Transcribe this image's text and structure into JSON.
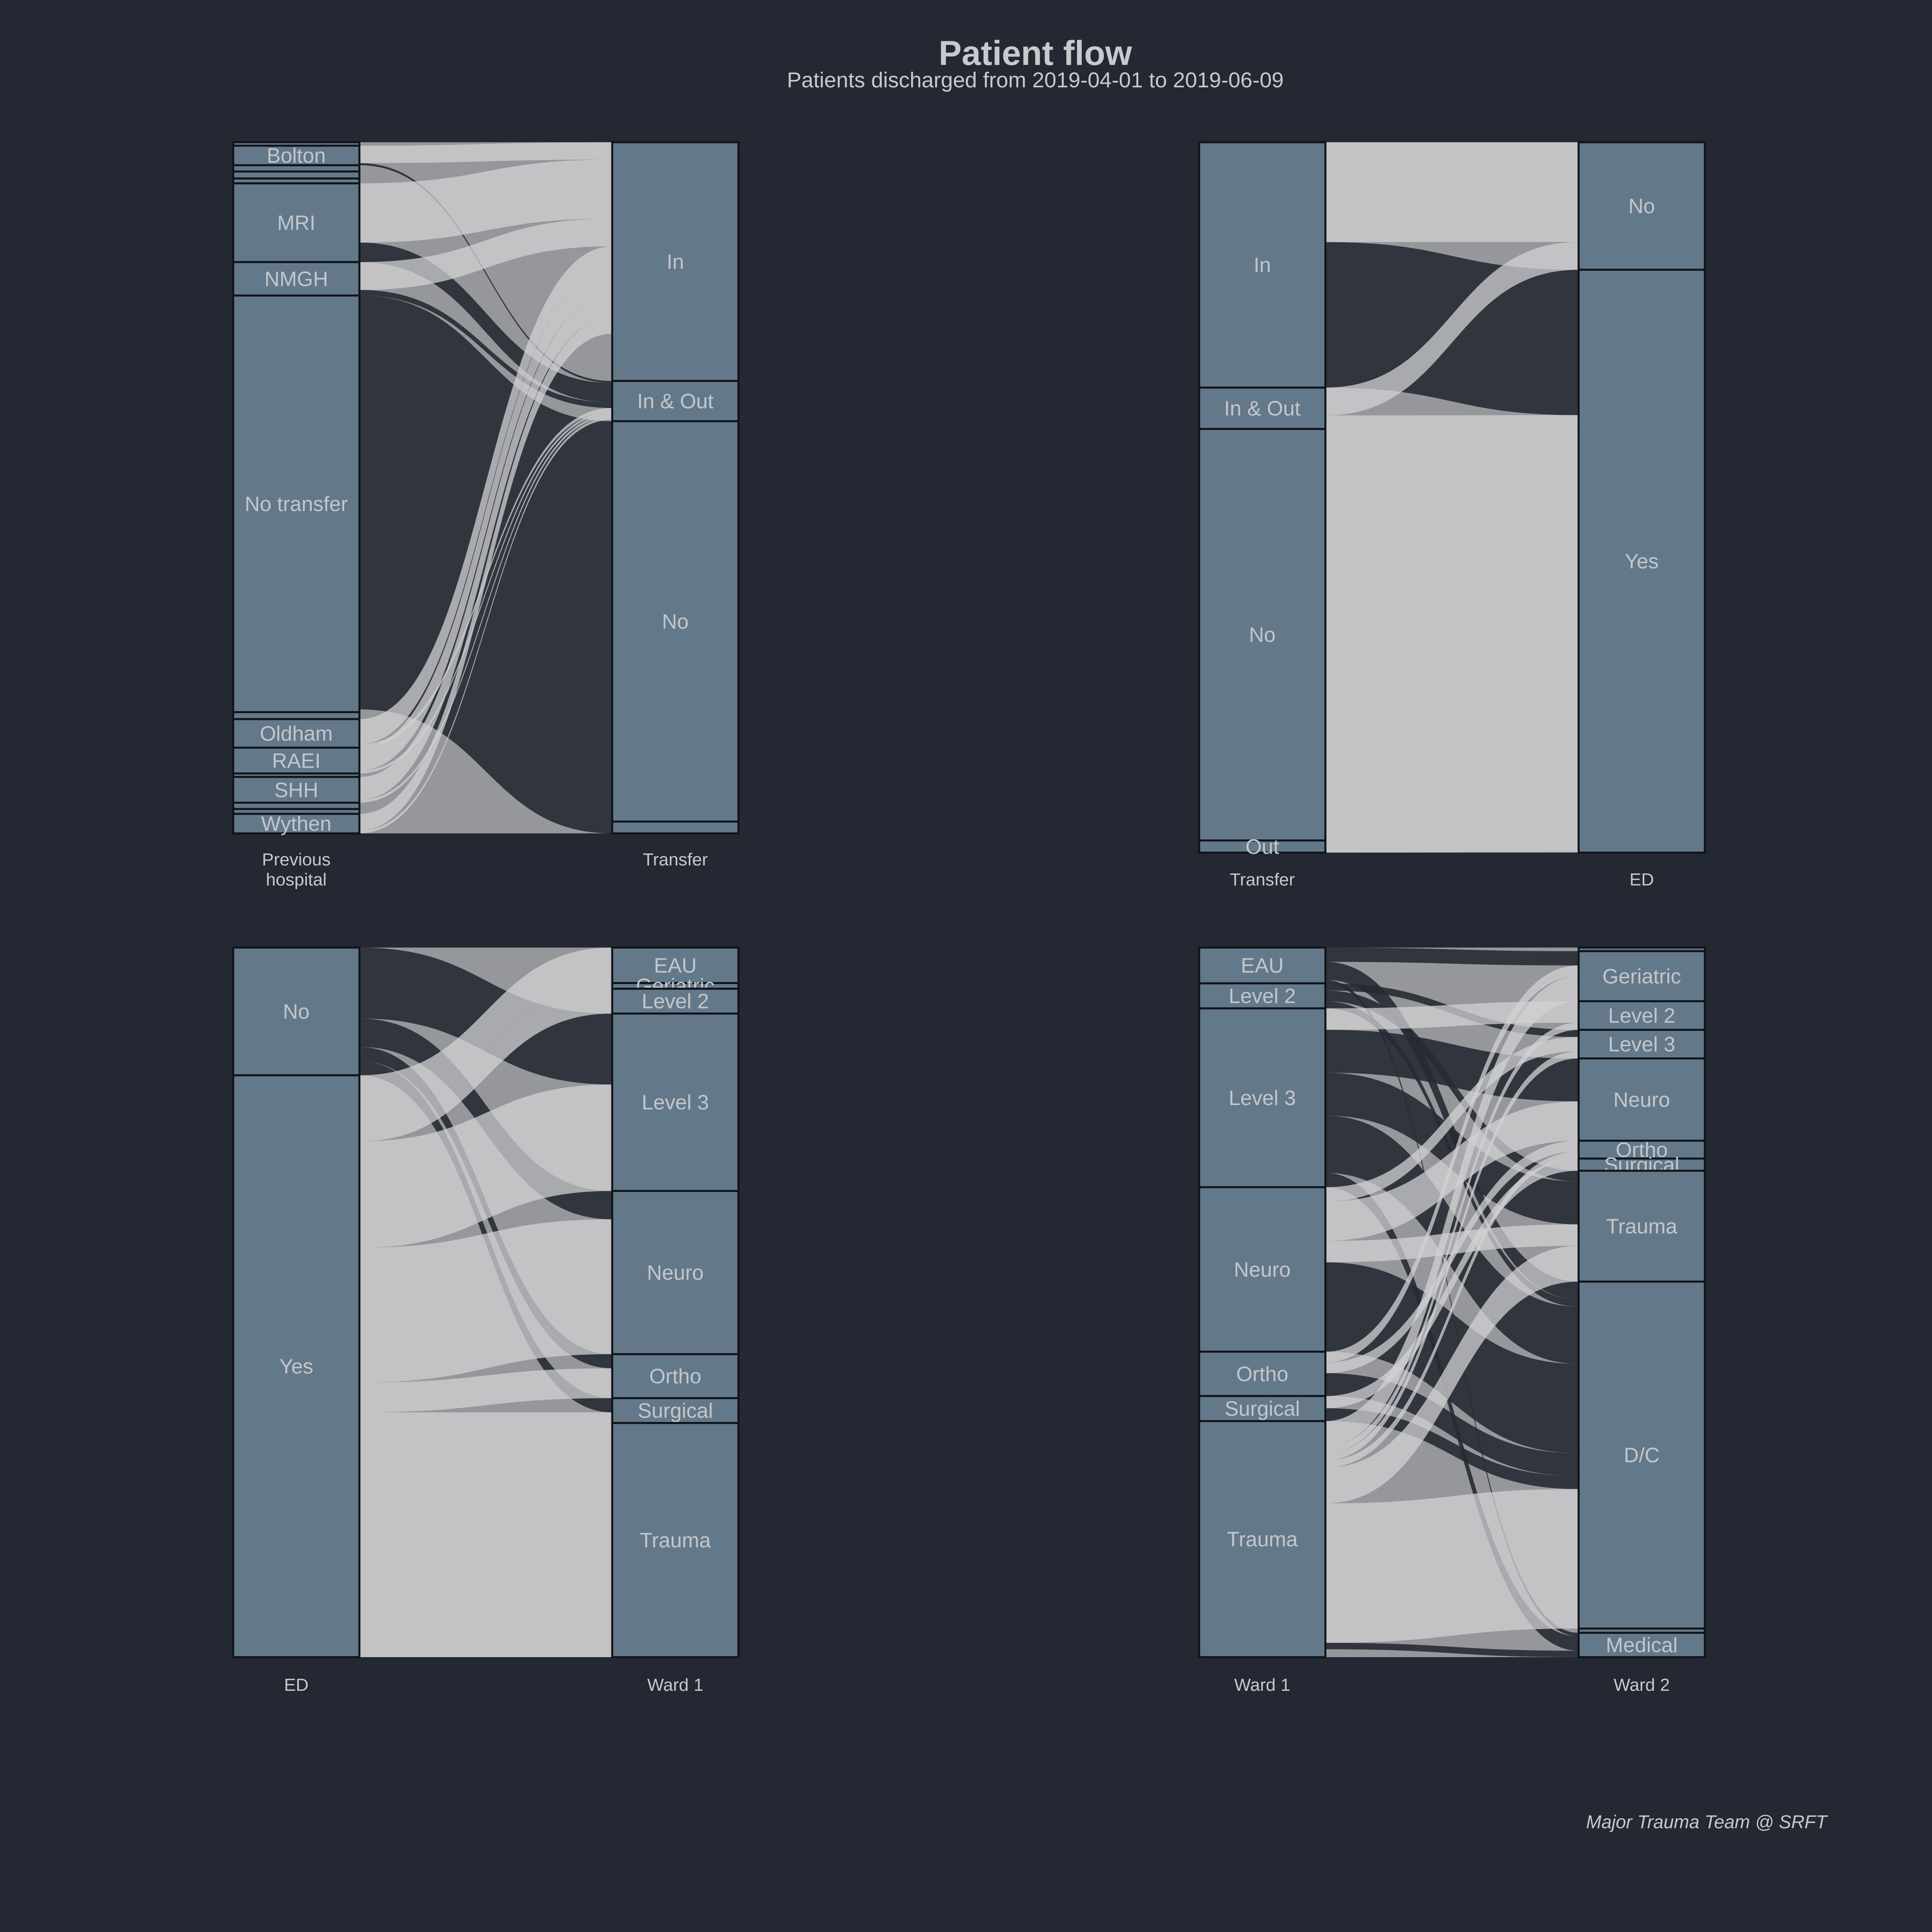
{
  "title": "Patient flow",
  "subtitle": "Patients discharged from 2019-04-01 to 2019-06-09",
  "caption": "Major Trauma Team @ SRFT",
  "colors": {
    "background": "#242833",
    "panel": "#96979b",
    "node": "#637989",
    "flow_light": "#d1d2d4",
    "flow_dark": "#262a33",
    "text": "#c8c9cc"
  },
  "chart_data": [
    {
      "type": "alluvial",
      "axes": [
        "Previous\nhospital",
        "Transfer"
      ],
      "axis_label_lines": [
        [
          "Previous",
          "hospital"
        ],
        [
          "Transfer"
        ]
      ],
      "left_nodes": [
        {
          "label": "",
          "value": 0.5
        },
        {
          "label": "Bolton",
          "value": 2.8
        },
        {
          "label": "",
          "value": 0.9
        },
        {
          "label": "",
          "value": 1.0
        },
        {
          "label": "",
          "value": 0.7
        },
        {
          "label": "MRI",
          "value": 11.3
        },
        {
          "label": "NMGH",
          "value": 4.8
        },
        {
          "label": "No transfer",
          "value": 59.8
        },
        {
          "label": "",
          "value": 1.0
        },
        {
          "label": "Oldham",
          "value": 4.1
        },
        {
          "label": "RAEI",
          "value": 3.7
        },
        {
          "label": "",
          "value": 0.5
        },
        {
          "label": "SHH",
          "value": 3.7
        },
        {
          "label": "",
          "value": 0.9
        },
        {
          "label": "",
          "value": 0.7
        },
        {
          "label": "Wythen",
          "value": 2.8
        }
      ],
      "right_nodes": [
        {
          "label": "In",
          "value": 34.4
        },
        {
          "label": "In & Out",
          "value": 5.8
        },
        {
          "label": "No",
          "value": 57.7
        },
        {
          "label": "",
          "value": 1.7
        }
      ],
      "flows": [
        {
          "from": "Bolton",
          "to": "In",
          "value": 2.5
        },
        {
          "from": "Bolton",
          "to": "In & Out",
          "value": 0.3
        },
        {
          "from": "MRI",
          "to": "In",
          "value": 8.5
        },
        {
          "from": "MRI",
          "to": "In & Out",
          "value": 2.8
        },
        {
          "from": "NMGH",
          "to": "In",
          "value": 4.0
        },
        {
          "from": "NMGH",
          "to": "In & Out",
          "value": 0.8
        },
        {
          "from": "No transfer",
          "to": "No",
          "value": 57.7
        },
        {
          "from": "No transfer",
          "to": "Out",
          "value": 1.7
        },
        {
          "from": "Oldham",
          "to": "In",
          "value": 3.6
        },
        {
          "from": "Oldham",
          "to": "In & Out",
          "value": 0.5
        },
        {
          "from": "RAEI",
          "to": "In",
          "value": 3.3
        },
        {
          "from": "RAEI",
          "to": "In & Out",
          "value": 0.4
        },
        {
          "from": "SHH",
          "to": "In",
          "value": 3.3
        },
        {
          "from": "SHH",
          "to": "In & Out",
          "value": 0.4
        },
        {
          "from": "Wythen",
          "to": "In",
          "value": 2.4
        },
        {
          "from": "Wythen",
          "to": "In & Out",
          "value": 0.4
        }
      ]
    },
    {
      "type": "alluvial",
      "axes": [
        "Transfer",
        "ED"
      ],
      "axis_label_lines": [
        [
          "Transfer"
        ],
        [
          "ED"
        ]
      ],
      "left_nodes": [
        {
          "label": "In",
          "value": 34.4
        },
        {
          "label": "In & Out",
          "value": 5.8
        },
        {
          "label": "No",
          "value": 57.7
        },
        {
          "label": "Out",
          "value": 1.7
        }
      ],
      "right_nodes": [
        {
          "label": "No",
          "value": 17.9
        },
        {
          "label": "Yes",
          "value": 81.8
        }
      ],
      "flows": [
        {
          "from": "In",
          "to": "No",
          "value": 14.0
        },
        {
          "from": "In",
          "to": "Yes",
          "value": 20.4
        },
        {
          "from": "In & Out",
          "to": "No",
          "value": 3.9
        },
        {
          "from": "In & Out",
          "to": "Yes",
          "value": 1.9
        },
        {
          "from": "No",
          "to": "Yes",
          "value": 57.7
        },
        {
          "from": "Out",
          "to": "Yes",
          "value": 1.7
        }
      ]
    },
    {
      "type": "alluvial",
      "axes": [
        "ED",
        "Ward 1"
      ],
      "axis_label_lines": [
        [
          "ED"
        ],
        [
          "Ward 1"
        ]
      ],
      "left_nodes": [
        {
          "label": "No",
          "value": 18.0
        },
        {
          "label": "Yes",
          "value": 82.0
        }
      ],
      "right_nodes": [
        {
          "label": "EAU",
          "value": 5.0
        },
        {
          "label": "Geriatric",
          "value": 0.8
        },
        {
          "label": "Level 2",
          "value": 3.5
        },
        {
          "label": "Level 3",
          "value": 25.0
        },
        {
          "label": "Neuro",
          "value": 23.0
        },
        {
          "label": "Ortho",
          "value": 6.2
        },
        {
          "label": "Surgical",
          "value": 3.5
        },
        {
          "label": "Trauma",
          "value": 33.0
        }
      ],
      "flows": [
        {
          "from": "No",
          "to": "Level 3",
          "value": 10.0
        },
        {
          "from": "No",
          "to": "Neuro",
          "value": 4.0
        },
        {
          "from": "No",
          "to": "Ortho",
          "value": 2.0
        },
        {
          "from": "No",
          "to": "Surgical",
          "value": 2.0
        },
        {
          "from": "Yes",
          "to": "EAU",
          "value": 5.0
        },
        {
          "from": "Yes",
          "to": "Geriatric",
          "value": 0.8
        },
        {
          "from": "Yes",
          "to": "Level 2",
          "value": 3.5
        },
        {
          "from": "Yes",
          "to": "Level 3",
          "value": 15.0
        },
        {
          "from": "Yes",
          "to": "Neuro",
          "value": 19.0
        },
        {
          "from": "Yes",
          "to": "Ortho",
          "value": 4.2
        },
        {
          "from": "Yes",
          "to": "Surgical",
          "value": 1.5
        },
        {
          "from": "Yes",
          "to": "Trauma",
          "value": 33.0
        }
      ]
    },
    {
      "type": "alluvial",
      "axes": [
        "Ward 1",
        "Ward 2"
      ],
      "axis_label_lines": [
        [
          "Ward 1"
        ],
        [
          "Ward 2"
        ]
      ],
      "left_nodes": [
        {
          "label": "EAU",
          "value": 5.0
        },
        {
          "label": "Level 2",
          "value": 3.5
        },
        {
          "label": "Level 3",
          "value": 25.0
        },
        {
          "label": "Neuro",
          "value": 23.0
        },
        {
          "label": "Ortho",
          "value": 6.2
        },
        {
          "label": "Surgical",
          "value": 3.5
        },
        {
          "label": "Trauma",
          "value": 33.0
        }
      ],
      "right_nodes": [
        {
          "label": "",
          "value": 0.5
        },
        {
          "label": "Geriatric",
          "value": 7.0
        },
        {
          "label": "Level 2",
          "value": 4.0
        },
        {
          "label": "Level 3",
          "value": 4.0
        },
        {
          "label": "Neuro",
          "value": 11.5
        },
        {
          "label": "Ortho",
          "value": 2.5
        },
        {
          "label": "Surgical",
          "value": 1.7
        },
        {
          "label": "Trauma",
          "value": 15.5
        },
        {
          "label": "D/C",
          "value": 48.5
        },
        {
          "label": "",
          "value": 0.6
        },
        {
          "label": "Medical",
          "value": 3.4
        }
      ],
      "flows": [
        {
          "from": "EAU",
          "to": "Geriatric",
          "value": 2.0
        },
        {
          "from": "EAU",
          "to": "D/C",
          "value": 2.5
        },
        {
          "from": "EAU",
          "to": "Medical",
          "value": 0.5
        },
        {
          "from": "Level 2",
          "to": "Level 3",
          "value": 1.0
        },
        {
          "from": "Level 2",
          "to": "Trauma",
          "value": 1.5
        },
        {
          "from": "Level 2",
          "to": "D/C",
          "value": 1.0
        },
        {
          "from": "Level 3",
          "to": "Level 2",
          "value": 3.0
        },
        {
          "from": "Level 3",
          "to": "Neuro",
          "value": 6.0
        },
        {
          "from": "Level 3",
          "to": "Trauma",
          "value": 6.0
        },
        {
          "from": "Level 3",
          "to": "D/C",
          "value": 8.0
        },
        {
          "from": "Level 3",
          "to": "Medical",
          "value": 2.0
        },
        {
          "from": "Neuro",
          "to": "Level 3",
          "value": 2.0
        },
        {
          "from": "Neuro",
          "to": "Neuro",
          "value": 5.5
        },
        {
          "from": "Neuro",
          "to": "Trauma",
          "value": 3.0
        },
        {
          "from": "Neuro",
          "to": "D/C",
          "value": 12.5
        },
        {
          "from": "Ortho",
          "to": "Geriatric",
          "value": 1.5
        },
        {
          "from": "Ortho",
          "to": "Ortho",
          "value": 1.5
        },
        {
          "from": "Ortho",
          "to": "D/C",
          "value": 3.2
        },
        {
          "from": "Surgical",
          "to": "Surgical",
          "value": 1.7
        },
        {
          "from": "Surgical",
          "to": "D/C",
          "value": 1.8
        },
        {
          "from": "Trauma",
          "to": "Geriatric",
          "value": 3.5
        },
        {
          "from": "Trauma",
          "to": "Level 2",
          "value": 1.0
        },
        {
          "from": "Trauma",
          "to": "Level 3",
          "value": 1.0
        },
        {
          "from": "Trauma",
          "to": "Ortho",
          "value": 1.0
        },
        {
          "from": "Trauma",
          "to": "Trauma",
          "value": 5.0
        },
        {
          "from": "Trauma",
          "to": "D/C",
          "value": 19.5
        },
        {
          "from": "Trauma",
          "to": "Medical",
          "value": 0.9
        }
      ]
    }
  ]
}
